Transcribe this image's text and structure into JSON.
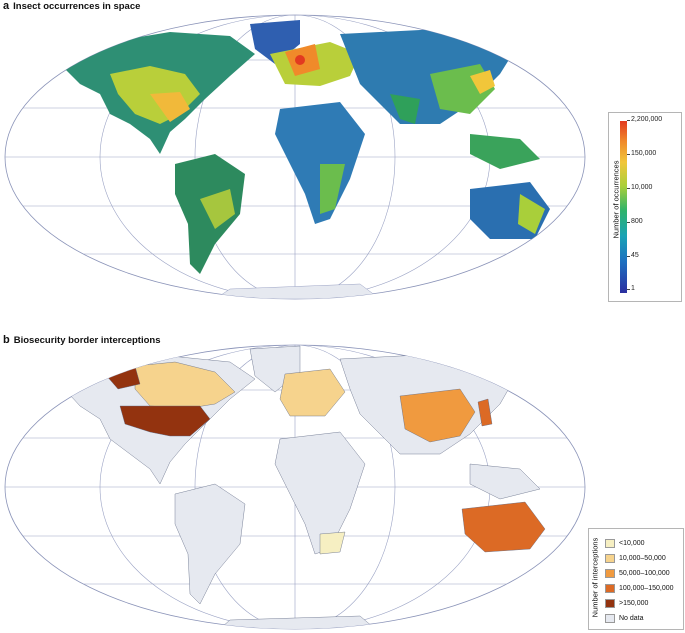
{
  "panel_a": {
    "letter": "a",
    "title": "Insect occurrences in space",
    "legend": {
      "title": "Number of occurrences",
      "ticks": [
        "2,200,000",
        "150,000",
        "10,000",
        "800",
        "45",
        "1"
      ]
    }
  },
  "panel_b": {
    "letter": "b",
    "title": "Biosecurity border interceptions",
    "legend": {
      "title": "Number of interceptions",
      "items": [
        {
          "label": "<10,000",
          "color": "#f6efc2"
        },
        {
          "label": "10,000–50,000",
          "color": "#f6d38d"
        },
        {
          "label": "50,000–100,000",
          "color": "#f09a3f"
        },
        {
          "label": "100,000–150,000",
          "color": "#dc6a25"
        },
        {
          "label": ">150,000",
          "color": "#93330f"
        },
        {
          "label": "No data",
          "color": "#e6e9f0"
        }
      ]
    }
  },
  "colors": {
    "ocean": "#ffffff",
    "land_nodata": "#e6e9f0",
    "grid": "#8a93b8",
    "density_low": "#1e5fb3",
    "density_mid": "#2fa05a",
    "density_high": "#f1c63a",
    "density_peak": "#e8521f"
  }
}
